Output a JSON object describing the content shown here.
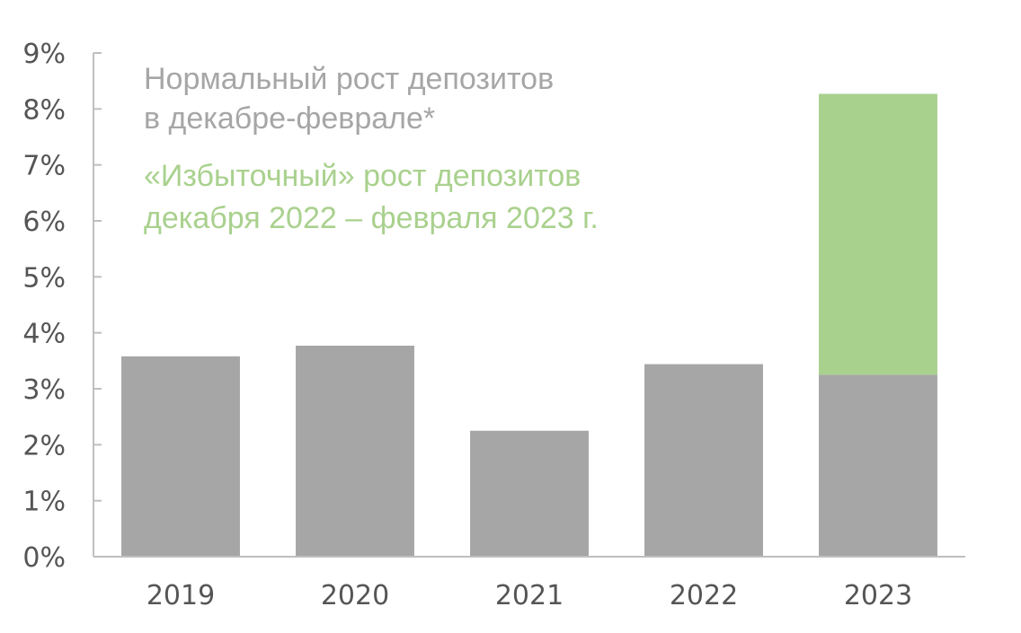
{
  "chart_data": {
    "type": "bar",
    "stacked": true,
    "title": "",
    "xlabel": "",
    "ylabel": "",
    "categories": [
      "2019",
      "2020",
      "2021",
      "2022",
      "2023"
    ],
    "ylim": [
      0,
      9
    ],
    "yticks": [
      0,
      1,
      2,
      3,
      4,
      5,
      6,
      7,
      8,
      9
    ],
    "ytick_labels": [
      "0%",
      "1%",
      "2%",
      "3%",
      "4%",
      "5%",
      "6%",
      "7%",
      "8%",
      "9%"
    ],
    "grid": false,
    "legend_placement": "top-left (inside plot)",
    "series": [
      {
        "name": "Нормальный рост депозитов в декабре-феврале*",
        "legend_lines": [
          "Нормальный рост депозитов",
          "в декабре-феврале*"
        ],
        "color": "#a6a6a6",
        "values": [
          3.58,
          3.77,
          2.25,
          3.44,
          3.25
        ]
      },
      {
        "name": "«Избыточный» рост депозитов декабря 2022 – февраля 2023 г.",
        "legend_lines": [
          "«Избыточный» рост депозитов",
          "декабря 2022 – февраля 2023 г."
        ],
        "color": "#a9d18e",
        "values": [
          0,
          0,
          0,
          0,
          5.02
        ]
      }
    ],
    "legend_colors": [
      "#a6a6a6",
      "#a9d18e"
    ],
    "axis_color": "#bfbfbf",
    "tick_label_color": "#555555"
  }
}
